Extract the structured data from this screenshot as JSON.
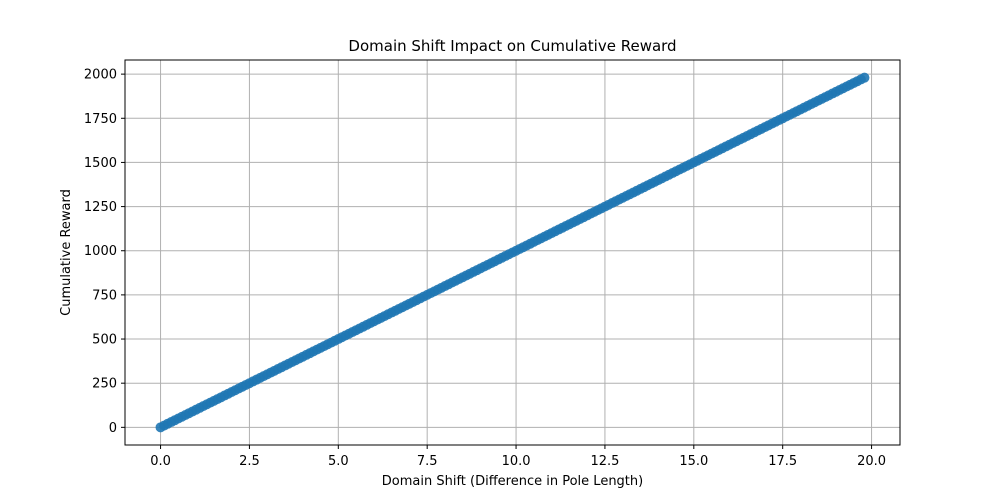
{
  "chart_data": {
    "type": "scatter",
    "title": "Domain Shift Impact on Cumulative Reward",
    "xlabel": "Domain Shift (Difference in Pole Length)",
    "ylabel": "Cumulative Reward",
    "xlim": [
      -1.0,
      20.8
    ],
    "ylim": [
      -100,
      2080
    ],
    "xticks": [
      0.0,
      2.5,
      5.0,
      7.5,
      10.0,
      12.5,
      15.0,
      17.5,
      20.0
    ],
    "xtick_labels": [
      "0.0",
      "2.5",
      "5.0",
      "7.5",
      "10.0",
      "12.5",
      "15.0",
      "17.5",
      "20.0"
    ],
    "yticks": [
      0,
      250,
      500,
      750,
      1000,
      1250,
      1500,
      1750,
      2000
    ],
    "ytick_labels": [
      "0",
      "250",
      "500",
      "750",
      "1000",
      "1250",
      "1500",
      "1750",
      "2000"
    ],
    "grid": true,
    "legend": "none",
    "marker_color": "#1f77b4",
    "series": [
      {
        "x_start": 0.0,
        "x_end": 19.8,
        "x_step": 0.1,
        "relation": "y = 100 * x",
        "y_start": 0,
        "y_end": 1980
      }
    ]
  }
}
